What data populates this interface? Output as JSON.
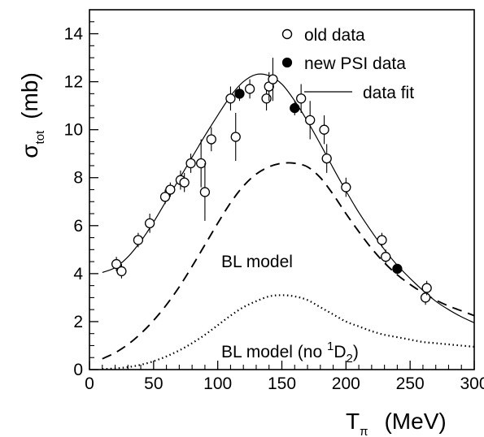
{
  "chart_data": {
    "type": "scatter",
    "xlabel": {
      "main": "T",
      "sub": "π",
      "unit": "(MeV)"
    },
    "ylabel": {
      "main": "σ",
      "sub": "tot",
      "unit": "(mb)"
    },
    "xlim": [
      0,
      300
    ],
    "ylim": [
      0,
      15
    ],
    "x_ticks": [
      0,
      50,
      100,
      150,
      200,
      250,
      300
    ],
    "y_ticks": [
      0,
      2,
      4,
      6,
      8,
      10,
      12,
      14
    ],
    "grid": false,
    "legend_position": "top-right",
    "legend": [
      {
        "label": "old data",
        "marker": "open-circle"
      },
      {
        "label": "new PSI data",
        "marker": "filled-circle"
      },
      {
        "label": "data fit",
        "marker": "solid-line"
      }
    ],
    "annotations": {
      "bl": "BL model",
      "bl_no_prefix": "BL model (no ",
      "bl_no_sup": "1",
      "bl_no_D": "D",
      "bl_no_sub": "2",
      "bl_no_close": ")"
    },
    "series": [
      {
        "name": "old data",
        "marker": "open",
        "points": [
          {
            "x": 21,
            "y": 4.4,
            "err": 0.3
          },
          {
            "x": 25,
            "y": 4.1,
            "err": 0.3
          },
          {
            "x": 38,
            "y": 5.4,
            "err": 0.3
          },
          {
            "x": 47,
            "y": 6.1,
            "err": 0.4
          },
          {
            "x": 59,
            "y": 7.2,
            "err": 0.3
          },
          {
            "x": 63,
            "y": 7.5,
            "err": 0.3
          },
          {
            "x": 71,
            "y": 7.9,
            "err": 0.4
          },
          {
            "x": 74,
            "y": 7.8,
            "err": 0.4
          },
          {
            "x": 79,
            "y": 8.6,
            "err": 0.4
          },
          {
            "x": 87,
            "y": 8.6,
            "err": 1.0
          },
          {
            "x": 90,
            "y": 7.4,
            "err": 1.2
          },
          {
            "x": 95,
            "y": 9.6,
            "err": 0.5
          },
          {
            "x": 110,
            "y": 11.3,
            "err": 0.5
          },
          {
            "x": 114,
            "y": 9.7,
            "err": 1.0
          },
          {
            "x": 125,
            "y": 11.7,
            "err": 0.4
          },
          {
            "x": 138,
            "y": 11.3,
            "err": 0.5
          },
          {
            "x": 140,
            "y": 11.8,
            "err": 0.6
          },
          {
            "x": 143,
            "y": 12.1,
            "err": 0.9
          },
          {
            "x": 165,
            "y": 11.3,
            "err": 0.6
          },
          {
            "x": 172,
            "y": 10.4,
            "err": 0.8
          },
          {
            "x": 183,
            "y": 10.0,
            "err": 0.6
          },
          {
            "x": 185,
            "y": 8.8,
            "err": 0.6
          },
          {
            "x": 200,
            "y": 7.6,
            "err": 0.4
          },
          {
            "x": 228,
            "y": 5.4,
            "err": 0.3
          },
          {
            "x": 231,
            "y": 4.7,
            "err": 0.3
          },
          {
            "x": 262,
            "y": 3.0,
            "err": 0.3
          },
          {
            "x": 263,
            "y": 3.4,
            "err": 0.3
          }
        ]
      },
      {
        "name": "new PSI data",
        "marker": "filled",
        "points": [
          {
            "x": 117,
            "y": 11.5,
            "err": 0.3
          },
          {
            "x": 160,
            "y": 10.9,
            "err": 0.3
          },
          {
            "x": 240,
            "y": 4.2,
            "err": 0.2
          }
        ]
      },
      {
        "name": "data fit",
        "style": "solid",
        "x": [
          10,
          20,
          30,
          40,
          50,
          60,
          70,
          80,
          90,
          100,
          110,
          120,
          130,
          140,
          150,
          160,
          170,
          180,
          190,
          200,
          210,
          220,
          230,
          240,
          250,
          260,
          270,
          280,
          290,
          300
        ],
        "y": [
          4.05,
          4.25,
          4.7,
          5.35,
          6.15,
          7.05,
          7.95,
          8.85,
          9.75,
          10.6,
          11.4,
          12.0,
          12.3,
          12.25,
          11.9,
          11.2,
          10.35,
          9.4,
          8.4,
          7.45,
          6.55,
          5.75,
          5.0,
          4.35,
          3.8,
          3.3,
          2.85,
          2.5,
          2.2,
          1.95
        ]
      },
      {
        "name": "BL model",
        "style": "dashed",
        "x": [
          10,
          20,
          30,
          40,
          50,
          60,
          70,
          80,
          90,
          100,
          110,
          120,
          130,
          140,
          150,
          160,
          170,
          180,
          190,
          200,
          210,
          220,
          230,
          240,
          250,
          260,
          270,
          280,
          290,
          300
        ],
        "y": [
          0.45,
          0.7,
          1.05,
          1.5,
          2.05,
          2.7,
          3.45,
          4.3,
          5.2,
          6.1,
          6.95,
          7.65,
          8.15,
          8.45,
          8.6,
          8.6,
          8.45,
          8.0,
          7.3,
          6.5,
          5.75,
          5.05,
          4.45,
          3.95,
          3.55,
          3.2,
          2.9,
          2.65,
          2.45,
          2.25
        ]
      },
      {
        "name": "BL model (no 1D2)",
        "style": "dotted",
        "x": [
          10,
          20,
          30,
          40,
          50,
          60,
          70,
          80,
          90,
          100,
          110,
          120,
          130,
          140,
          150,
          160,
          170,
          180,
          190,
          200,
          210,
          220,
          230,
          240,
          250,
          260,
          270,
          280,
          290,
          300
        ],
        "y": [
          0.02,
          0.05,
          0.1,
          0.2,
          0.35,
          0.55,
          0.8,
          1.1,
          1.45,
          1.85,
          2.25,
          2.6,
          2.85,
          3.05,
          3.1,
          3.05,
          2.9,
          2.6,
          2.3,
          2.0,
          1.8,
          1.6,
          1.45,
          1.35,
          1.25,
          1.15,
          1.1,
          1.05,
          1.0,
          0.95
        ]
      }
    ]
  }
}
